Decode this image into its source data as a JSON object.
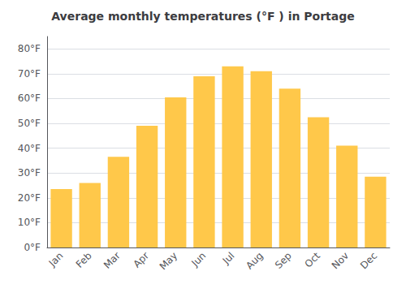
{
  "chart_data": {
    "type": "bar",
    "title": "Average monthly temperatures (°F ) in Portage",
    "categories": [
      "Jan",
      "Feb",
      "Mar",
      "Apr",
      "May",
      "Jun",
      "Jul",
      "Aug",
      "Sep",
      "Oct",
      "Nov",
      "Dec"
    ],
    "values": [
      23.5,
      26.0,
      36.5,
      49.0,
      60.5,
      69.0,
      73.0,
      71.0,
      64.0,
      52.5,
      41.0,
      28.5
    ],
    "color": "#FFC84A",
    "ylim": [
      0,
      85
    ],
    "yticks": [
      {
        "value": 0,
        "label": "0°F"
      },
      {
        "value": 10,
        "label": "10°F"
      },
      {
        "value": 20,
        "label": "20°F"
      },
      {
        "value": 30,
        "label": "30°F"
      },
      {
        "value": 40,
        "label": "40°F"
      },
      {
        "value": 50,
        "label": "50°F"
      },
      {
        "value": 60,
        "label": "60°F"
      },
      {
        "value": 70,
        "label": "70°F"
      },
      {
        "value": 80,
        "label": "80°F"
      }
    ],
    "grid": true
  }
}
